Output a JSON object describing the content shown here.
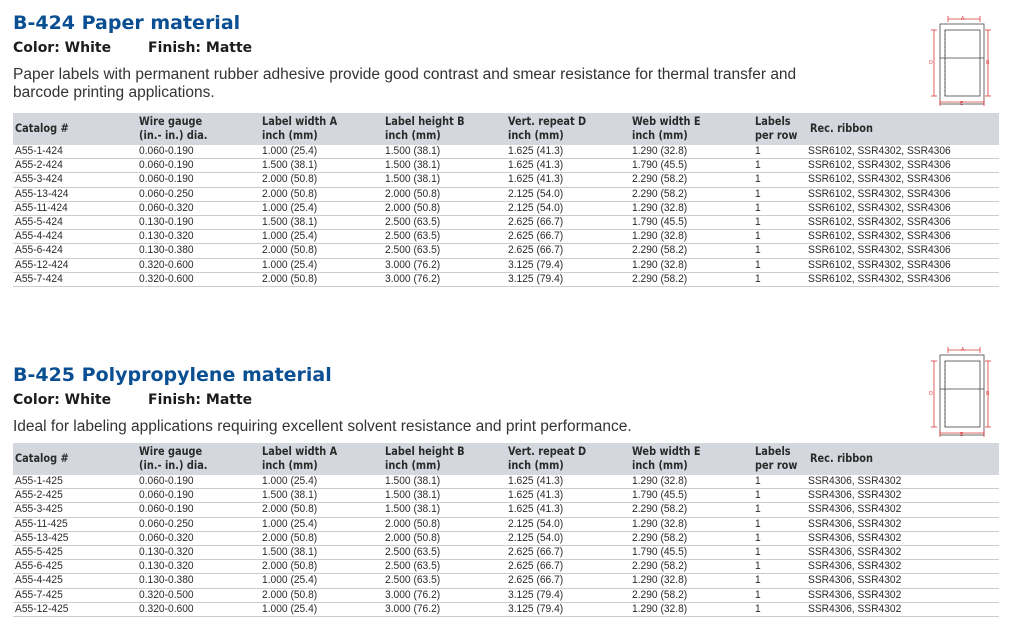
{
  "columns": [
    "Catalog #",
    "Wire gauge\n(in.- in.) dia.",
    "Label width A\ninch (mm)",
    "Label height B\ninch (mm)",
    "Vert. repeat D\ninch (mm)",
    "Web width E\ninch (mm)",
    "Labels\nper row",
    "Rec. ribbon"
  ],
  "sections": [
    {
      "title": "B-424 Paper material",
      "color": "Color: White",
      "finish": "Finish: Matte",
      "description": "Paper labels with permanent rubber adhesive provide good contrast and smear resistance for thermal transfer and barcode printing applications.",
      "rows": [
        [
          "A55-1-424",
          "0.060-0.190",
          "1.000 (25.4)",
          "1.500 (38.1)",
          "1.625 (41.3)",
          "1.290 (32.8)",
          "1",
          "SSR6102, SSR4302, SSR4306"
        ],
        [
          "A55-2-424",
          "0.060-0.190",
          "1.500 (38.1)",
          "1.500 (38.1)",
          "1.625 (41.3)",
          "1.790 (45.5)",
          "1",
          "SSR6102, SSR4302, SSR4306"
        ],
        [
          "A55-3-424",
          "0.060-0.190",
          "2.000 (50.8)",
          "1.500 (38.1)",
          "1.625 (41.3)",
          "2.290 (58.2)",
          "1",
          "SSR6102, SSR4302, SSR4306"
        ],
        [
          "A55-13-424",
          "0.060-0.250",
          "2.000 (50.8)",
          "2.000 (50.8)",
          "2.125 (54.0)",
          "2.290 (58.2)",
          "1",
          "SSR6102, SSR4302, SSR4306"
        ],
        [
          "A55-11-424",
          "0.060-0.320",
          "1.000 (25.4)",
          "2.000 (50.8)",
          "2.125 (54.0)",
          "1.290 (32.8)",
          "1",
          "SSR6102, SSR4302, SSR4306"
        ],
        [
          "A55-5-424",
          "0.130-0.190",
          "1.500 (38.1)",
          "2.500 (63.5)",
          "2.625 (66.7)",
          "1.790 (45.5)",
          "1",
          "SSR6102, SSR4302, SSR4306"
        ],
        [
          "A55-4-424",
          "0.130-0.320",
          "1.000 (25.4)",
          "2.500 (63.5)",
          "2.625 (66.7)",
          "1.290 (32.8)",
          "1",
          "SSR6102, SSR4302, SSR4306"
        ],
        [
          "A55-6-424",
          "0.130-0.380",
          "2.000 (50.8)",
          "2.500 (63.5)",
          "2.625 (66.7)",
          "2.290 (58.2)",
          "1",
          "SSR6102, SSR4302, SSR4306"
        ],
        [
          "A55-12-424",
          "0.320-0.600",
          "1.000 (25.4)",
          "3.000 (76.2)",
          "3.125 (79.4)",
          "1.290 (32.8)",
          "1",
          "SSR6102, SSR4302, SSR4306"
        ],
        [
          "A55-7-424",
          "0.320-0.600",
          "2.000 (50.8)",
          "3.000 (76.2)",
          "3.125 (79.4)",
          "2.290 (58.2)",
          "1",
          "SSR6102, SSR4302, SSR4306"
        ]
      ]
    },
    {
      "title": "B-425 Polypropylene material",
      "color": "Color: White",
      "finish": "Finish: Matte",
      "description": "Ideal for labeling applications requiring excellent solvent resistance and print performance.",
      "rows": [
        [
          "A55-1-425",
          "0.060-0.190",
          "1.000 (25.4)",
          "1.500 (38.1)",
          "1.625 (41.3)",
          "1.290 (32.8)",
          "1",
          "SSR4306, SSR4302"
        ],
        [
          "A55-2-425",
          "0.060-0.190",
          "1.500 (38.1)",
          "1.500 (38.1)",
          "1.625 (41.3)",
          "1.790 (45.5)",
          "1",
          "SSR4306, SSR4302"
        ],
        [
          "A55-3-425",
          "0.060-0.190",
          "2.000 (50.8)",
          "1.500 (38.1)",
          "1.625 (41.3)",
          "2.290 (58.2)",
          "1",
          "SSR4306, SSR4302"
        ],
        [
          "A55-11-425",
          "0.060-0.250",
          "1.000 (25.4)",
          "2.000 (50.8)",
          "2.125 (54.0)",
          "1.290 (32.8)",
          "1",
          "SSR4306, SSR4302"
        ],
        [
          "A55-13-425",
          "0.060-0.320",
          "2.000 (50.8)",
          "2.000 (50.8)",
          "2.125 (54.0)",
          "2.290 (58.2)",
          "1",
          "SSR4306, SSR4302"
        ],
        [
          "A55-5-425",
          "0.130-0.320",
          "1.500 (38.1)",
          "2.500 (63.5)",
          "2.625 (66.7)",
          "1.790 (45.5)",
          "1",
          "SSR4306, SSR4302"
        ],
        [
          "A55-6-425",
          "0.130-0.320",
          "2.000 (50.8)",
          "2.500 (63.5)",
          "2.625 (66.7)",
          "2.290 (58.2)",
          "1",
          "SSR4306, SSR4302"
        ],
        [
          "A55-4-425",
          "0.130-0.380",
          "1.000 (25.4)",
          "2.500 (63.5)",
          "2.625 (66.7)",
          "1.290 (32.8)",
          "1",
          "SSR4306, SSR4302"
        ],
        [
          "A55-7-425",
          "0.320-0.500",
          "2.000 (50.8)",
          "3.000 (76.2)",
          "3.125 (79.4)",
          "2.290 (58.2)",
          "1",
          "SSR4306, SSR4302"
        ],
        [
          "A55-12-425",
          "0.320-0.600",
          "1.000 (25.4)",
          "3.000 (76.2)",
          "3.125 (79.4)",
          "1.290 (32.8)",
          "1",
          "SSR4306, SSR4302"
        ]
      ]
    }
  ],
  "diagram": {
    "label_a": "A",
    "label_b": "B",
    "label_d": "D",
    "label_e": "E",
    "accent": "#d93a3a"
  },
  "colors": {
    "title": "#0b4f93",
    "header_bg": "#d4d8de"
  }
}
